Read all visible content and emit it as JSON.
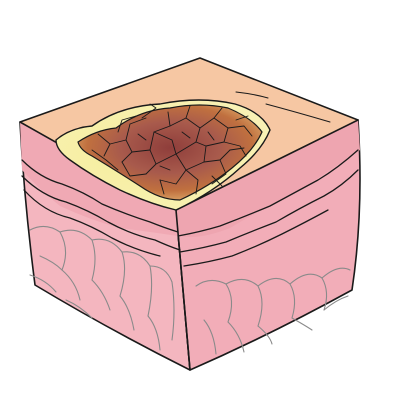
{
  "figure": {
    "labels": []
  },
  "colors": {
    "background": "#ffffff",
    "outline": "#1a1a1a",
    "epidermis_top": "#f6c7a3",
    "dermis_side": "#f4b3bd",
    "dermis_front": "#f2aab6",
    "vessels": "#8a8a8a",
    "slough_yellow": "#f6efa8",
    "wound_brown": "#a45a48",
    "wound_red": "#c0553e",
    "wound_orange": "#d9894e"
  }
}
